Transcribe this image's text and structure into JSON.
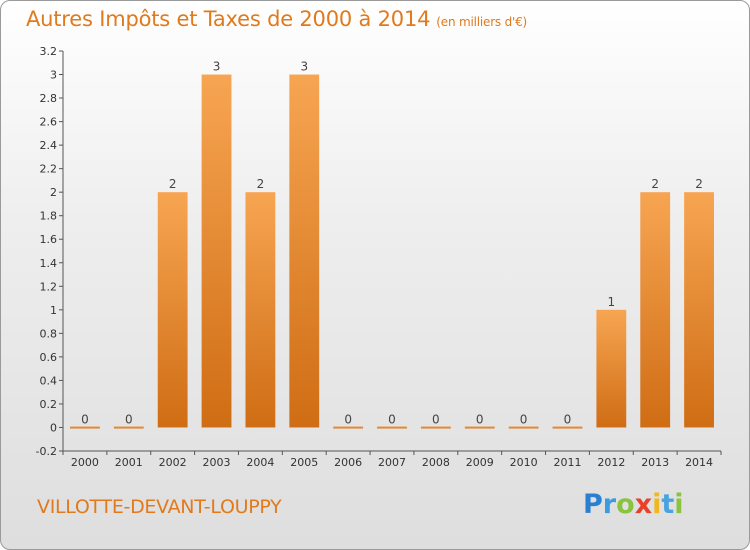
{
  "title": {
    "main": "Autres Impôts et Taxes de 2000 à 2014",
    "unit": "(en milliers d'€)"
  },
  "commune": "VILLOTTE-DEVANT-LOUPPY",
  "logo": {
    "letters": [
      "P",
      "r",
      "o",
      "x",
      "i",
      "t",
      "i"
    ],
    "colors": [
      "#2b7fd1",
      "#3a9be0",
      "#8ac43f",
      "#e8402a",
      "#f2b71c",
      "#4aa3df",
      "#8ac43f"
    ]
  },
  "chart_data": {
    "type": "bar",
    "title": "Autres Impôts et Taxes de 2000 à 2014",
    "ylabel": "",
    "xlabel": "",
    "categories": [
      "2000",
      "2001",
      "2002",
      "2003",
      "2004",
      "2005",
      "2006",
      "2007",
      "2008",
      "2009",
      "2010",
      "2011",
      "2012",
      "2013",
      "2014"
    ],
    "values": [
      0,
      0,
      2,
      3,
      2,
      3,
      0,
      0,
      0,
      0,
      0,
      0,
      1,
      2,
      2
    ],
    "data_labels": [
      "0",
      "0",
      "2",
      "3",
      "2",
      "3",
      "0",
      "0",
      "0",
      "0",
      "0",
      "0",
      "1",
      "2",
      "2"
    ],
    "ylim": [
      -0.2,
      3.2
    ],
    "yticks": [
      "-0.2",
      "0",
      "0.2",
      "0.4",
      "0.6",
      "0.8",
      "1",
      "1.2",
      "1.4",
      "1.6",
      "1.8",
      "2",
      "2.2",
      "2.4",
      "2.6",
      "2.8",
      "3",
      "3.2"
    ],
    "grid": false,
    "bar_color": "#f0902e"
  }
}
